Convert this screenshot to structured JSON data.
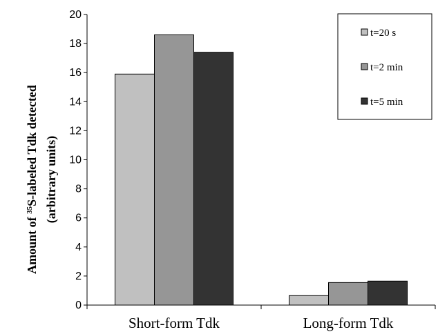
{
  "chart_data": {
    "type": "bar",
    "categories": [
      "Short-form Tdk",
      "Long-form Tdk"
    ],
    "series": [
      {
        "name": "t=20 s",
        "values": [
          15.9,
          0.65
        ],
        "color": "#c0c0c0"
      },
      {
        "name": "t=2 min",
        "values": [
          18.6,
          1.55
        ],
        "color": "#969696"
      },
      {
        "name": "t=5 min",
        "values": [
          17.4,
          1.65
        ],
        "color": "#333333"
      }
    ],
    "ylabel_line1_prefix": "Amount of ",
    "ylabel_line1_sup": "35",
    "ylabel_line1_suffix": "S-labeled Tdk detected",
    "ylabel_line2": "(arbitrary units)",
    "ylim": [
      0,
      20
    ],
    "yticks": [
      "0",
      "2",
      "4",
      "6",
      "8",
      "10",
      "12",
      "14",
      "16",
      "18",
      "20"
    ],
    "grid": false,
    "legend_position": "top-right"
  }
}
